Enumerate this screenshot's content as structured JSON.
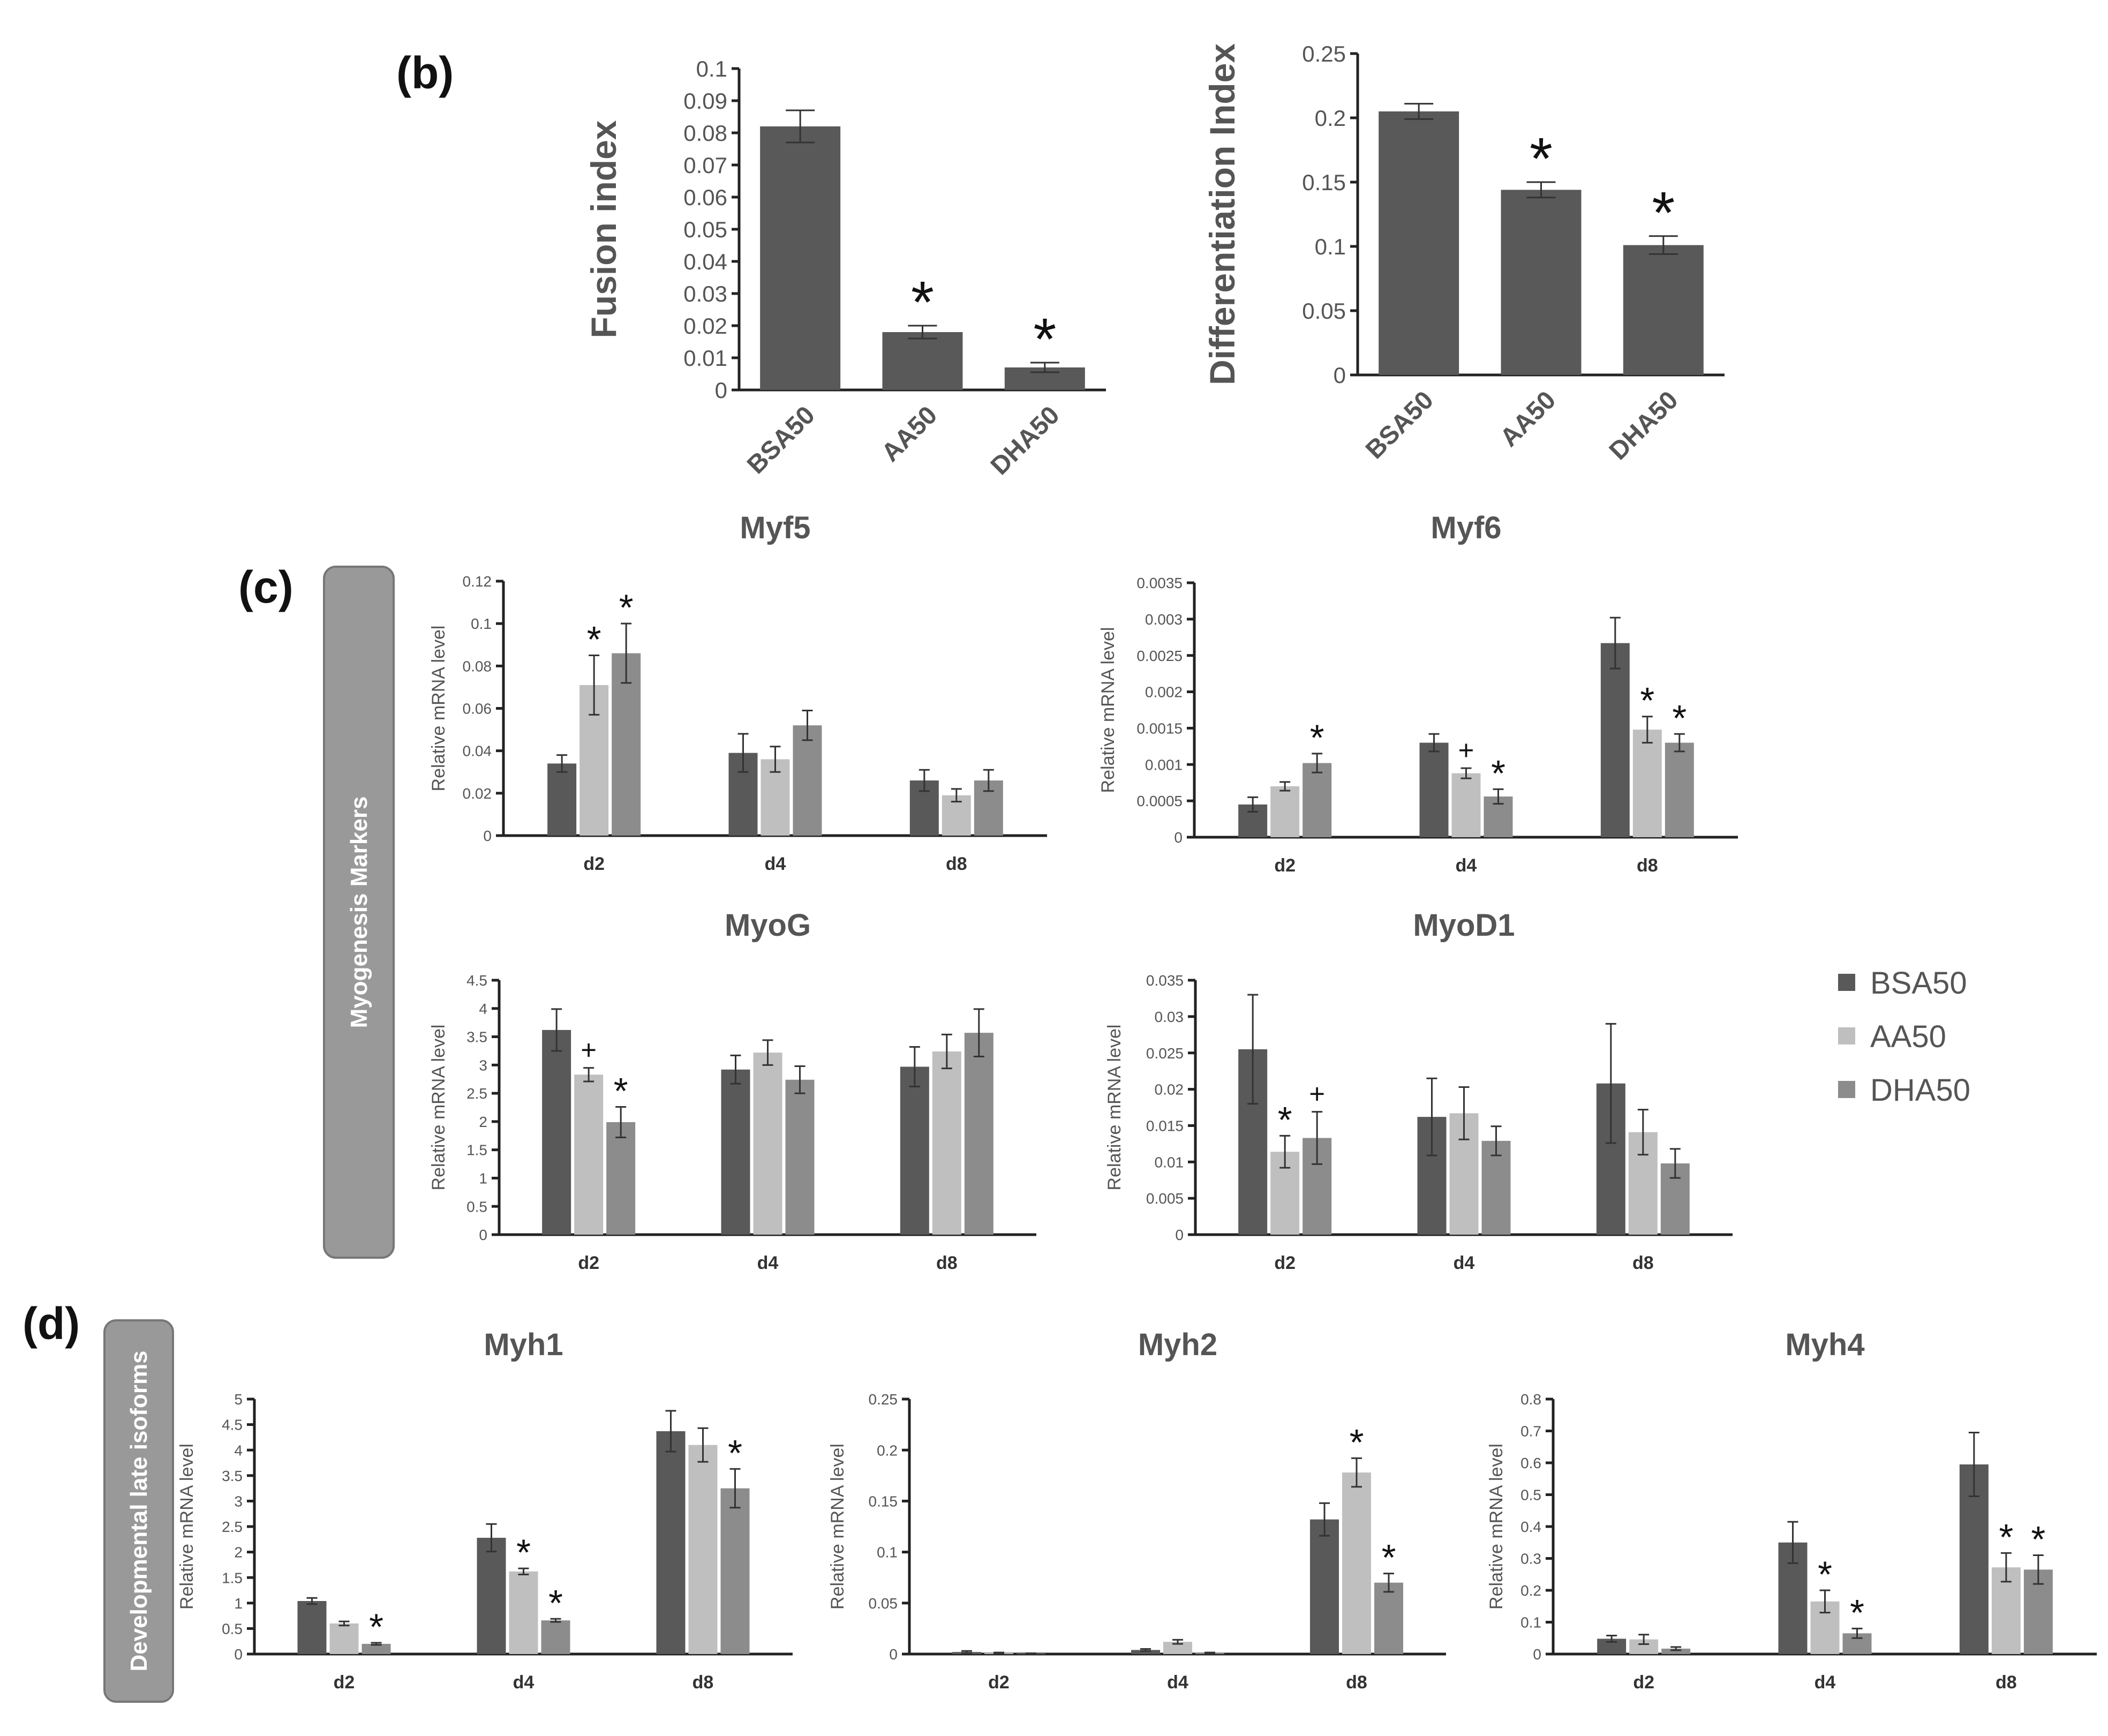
{
  "panel_labels": {
    "b": "(b)",
    "c": "(c)",
    "d": "(d)"
  },
  "side_labels": {
    "c": "Myogenesis Markers",
    "d": "Developmental late isoforms"
  },
  "legend": [
    {
      "label": "BSA50",
      "color": "#595959"
    },
    {
      "label": "AA50",
      "color": "#bfbfbf"
    },
    {
      "label": "DHA50",
      "color": "#8c8c8c"
    }
  ],
  "chart_data": [
    {
      "id": "fusion",
      "type": "bar",
      "title": "",
      "ylabel": "Fusion index",
      "xlabel": "",
      "categories": [
        "BSA50",
        "AA50",
        "DHA50"
      ],
      "values": [
        0.082,
        0.018,
        0.007
      ],
      "errors": [
        0.005,
        0.002,
        0.0015
      ],
      "marks": [
        "",
        "*",
        "*"
      ],
      "ylim": [
        0,
        0.1
      ],
      "yticks": [
        "0",
        "0.01",
        "0.02",
        "0.03",
        "0.04",
        "0.05",
        "0.06",
        "0.07",
        "0.08",
        "0.09",
        "0.1"
      ]
    },
    {
      "id": "diff",
      "type": "bar",
      "title": "",
      "ylabel": "Differentiation Index",
      "xlabel": "",
      "categories": [
        "BSA50",
        "AA50",
        "DHA50"
      ],
      "values": [
        0.205,
        0.144,
        0.101
      ],
      "errors": [
        0.006,
        0.006,
        0.007
      ],
      "marks": [
        "",
        "*",
        "*"
      ],
      "ylim": [
        0,
        0.25
      ],
      "yticks": [
        "0",
        "0.05",
        "0.1",
        "0.15",
        "0.2",
        "0.25"
      ]
    },
    {
      "id": "myf5",
      "type": "bar",
      "title": "Myf5",
      "ylabel": "Relative mRNA level",
      "categories": [
        "d2",
        "d4",
        "d8"
      ],
      "ylim": [
        0,
        0.12
      ],
      "yticks": [
        "0",
        "0.02",
        "0.04",
        "0.06",
        "0.08",
        "0.1",
        "0.12"
      ],
      "series": [
        {
          "name": "BSA50",
          "values": [
            0.034,
            0.039,
            0.026
          ],
          "errors": [
            0.004,
            0.009,
            0.005
          ],
          "marks": [
            "",
            "",
            ""
          ]
        },
        {
          "name": "AA50",
          "values": [
            0.071,
            0.036,
            0.019
          ],
          "errors": [
            0.014,
            0.006,
            0.003
          ],
          "marks": [
            "*",
            "",
            ""
          ]
        },
        {
          "name": "DHA50",
          "values": [
            0.086,
            0.052,
            0.026
          ],
          "errors": [
            0.014,
            0.007,
            0.005
          ],
          "marks": [
            "*",
            "",
            ""
          ]
        }
      ]
    },
    {
      "id": "myf6",
      "type": "bar",
      "title": "Myf6",
      "ylabel": "Relative mRNA level",
      "categories": [
        "d2",
        "d4",
        "d8"
      ],
      "ylim": [
        0,
        0.0035
      ],
      "yticks": [
        "0",
        "0.0005",
        "0.001",
        "0.0015",
        "0.002",
        "0.0025",
        "0.003",
        "0.0035"
      ],
      "series": [
        {
          "name": "BSA50",
          "values": [
            0.00045,
            0.0013,
            0.00267
          ],
          "errors": [
            0.0001,
            0.00012,
            0.00035
          ],
          "marks": [
            "",
            "",
            ""
          ]
        },
        {
          "name": "AA50",
          "values": [
            0.0007,
            0.00088,
            0.00148
          ],
          "errors": [
            6e-05,
            7e-05,
            0.00018
          ],
          "marks": [
            "",
            "+",
            "*"
          ]
        },
        {
          "name": "DHA50",
          "values": [
            0.00102,
            0.00056,
            0.0013
          ],
          "errors": [
            0.00013,
            0.0001,
            0.00012
          ],
          "marks": [
            "*",
            "*",
            "*"
          ]
        }
      ]
    },
    {
      "id": "myog",
      "type": "bar",
      "title": "MyoG",
      "ylabel": "Relative mRNA level",
      "categories": [
        "d2",
        "d4",
        "d8"
      ],
      "ylim": [
        0,
        4.5
      ],
      "yticks": [
        "0",
        "0.5",
        "1",
        "1.5",
        "2",
        "2.5",
        "3",
        "3.5",
        "4",
        "4.5"
      ],
      "series": [
        {
          "name": "BSA50",
          "values": [
            3.62,
            2.92,
            2.97
          ],
          "errors": [
            0.37,
            0.25,
            0.35
          ],
          "marks": [
            "",
            "",
            ""
          ]
        },
        {
          "name": "AA50",
          "values": [
            2.83,
            3.22,
            3.24
          ],
          "errors": [
            0.12,
            0.22,
            0.3
          ],
          "marks": [
            "+",
            "",
            ""
          ]
        },
        {
          "name": "DHA50",
          "values": [
            1.99,
            2.74,
            3.57
          ],
          "errors": [
            0.27,
            0.24,
            0.42
          ],
          "marks": [
            "*",
            "",
            ""
          ]
        }
      ]
    },
    {
      "id": "myod1",
      "type": "bar",
      "title": "MyoD1",
      "ylabel": "Relative mRNA level",
      "categories": [
        "d2",
        "d4",
        "d8"
      ],
      "ylim": [
        0,
        0.035
      ],
      "yticks": [
        "0",
        "0.005",
        "0.01",
        "0.015",
        "0.02",
        "0.025",
        "0.03",
        "0.035"
      ],
      "series": [
        {
          "name": "BSA50",
          "values": [
            0.0255,
            0.0162,
            0.0208
          ],
          "errors": [
            0.0075,
            0.0053,
            0.0082
          ],
          "marks": [
            "",
            "",
            ""
          ]
        },
        {
          "name": "AA50",
          "values": [
            0.0114,
            0.0167,
            0.0141
          ],
          "errors": [
            0.0022,
            0.0036,
            0.0031
          ],
          "marks": [
            "*",
            "",
            ""
          ]
        },
        {
          "name": "DHA50",
          "values": [
            0.0133,
            0.0129,
            0.0098
          ],
          "errors": [
            0.0036,
            0.002,
            0.002
          ],
          "marks": [
            "+",
            "",
            ""
          ]
        }
      ]
    },
    {
      "id": "myh1",
      "type": "bar",
      "title": "Myh1",
      "ylabel": "Relative mRNA level",
      "categories": [
        "d2",
        "d4",
        "d8"
      ],
      "ylim": [
        0,
        5
      ],
      "yticks": [
        "0",
        "0.5",
        "1",
        "1.5",
        "2",
        "2.5",
        "3",
        "3.5",
        "4",
        "4.5",
        "5"
      ],
      "series": [
        {
          "name": "BSA50",
          "values": [
            1.04,
            2.28,
            4.37
          ],
          "errors": [
            0.06,
            0.27,
            0.4
          ],
          "marks": [
            "",
            "",
            ""
          ]
        },
        {
          "name": "AA50",
          "values": [
            0.6,
            1.62,
            4.1
          ],
          "errors": [
            0.04,
            0.06,
            0.33
          ],
          "marks": [
            "",
            "*",
            ""
          ]
        },
        {
          "name": "DHA50",
          "values": [
            0.2,
            0.66,
            3.25
          ],
          "errors": [
            0.02,
            0.03,
            0.38
          ],
          "marks": [
            "*",
            "*",
            "*"
          ]
        }
      ]
    },
    {
      "id": "myh2",
      "type": "bar",
      "title": "Myh2",
      "ylabel": "Relative mRNA level",
      "categories": [
        "d2",
        "d4",
        "d8"
      ],
      "ylim": [
        0,
        0.25
      ],
      "yticks": [
        "0",
        "0.05",
        "0.1",
        "0.15",
        "0.2",
        "0.25"
      ],
      "series": [
        {
          "name": "BSA50",
          "values": [
            0.002,
            0.004,
            0.132
          ],
          "errors": [
            0.001,
            0.001,
            0.016
          ],
          "marks": [
            "",
            "",
            ""
          ]
        },
        {
          "name": "AA50",
          "values": [
            0.001,
            0.012,
            0.178
          ],
          "errors": [
            0.0005,
            0.002,
            0.014
          ],
          "marks": [
            "",
            "",
            "*"
          ]
        },
        {
          "name": "DHA50",
          "values": [
            0.0005,
            0.001,
            0.07
          ],
          "errors": [
            0.0003,
            0.0005,
            0.009
          ],
          "marks": [
            "",
            "",
            "*"
          ]
        }
      ]
    },
    {
      "id": "myh4",
      "type": "bar",
      "title": "Myh4",
      "ylabel": "Relative mRNA level",
      "categories": [
        "d2",
        "d4",
        "d8"
      ],
      "ylim": [
        0,
        0.8
      ],
      "yticks": [
        "0",
        "0.1",
        "0.2",
        "0.3",
        "0.4",
        "0.5",
        "0.6",
        "0.7",
        "0.8"
      ],
      "series": [
        {
          "name": "BSA50",
          "values": [
            0.048,
            0.35,
            0.595
          ],
          "errors": [
            0.01,
            0.065,
            0.1
          ],
          "marks": [
            "",
            "",
            ""
          ]
        },
        {
          "name": "AA50",
          "values": [
            0.046,
            0.165,
            0.272
          ],
          "errors": [
            0.015,
            0.035,
            0.045
          ],
          "marks": [
            "",
            "*",
            "*"
          ]
        },
        {
          "name": "DHA50",
          "values": [
            0.017,
            0.065,
            0.265
          ],
          "errors": [
            0.005,
            0.015,
            0.045
          ],
          "marks": [
            "",
            "*",
            "*"
          ]
        }
      ]
    }
  ]
}
